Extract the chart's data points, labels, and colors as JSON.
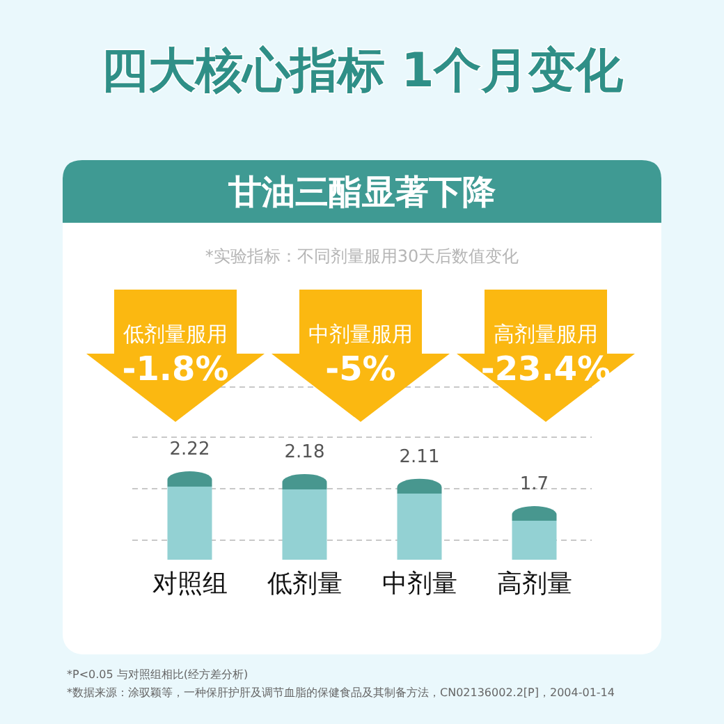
{
  "chart_data": {
    "type": "bar",
    "title": "四大核心指标  1个月变化",
    "subtitle": "甘油三酯显著下降",
    "categories": [
      "对照组",
      "低剂量",
      "中剂量",
      "高剂量"
    ],
    "values": [
      2.22,
      2.18,
      2.11,
      1.7
    ],
    "color": "#93d1d3",
    "data_labels": true,
    "ylim": [
      0.9,
      3.5
    ],
    "yticks": [
      {
        "value": 1.19,
        "label": null
      },
      {
        "value": 1.96,
        "label": null
      },
      {
        "value": 2.73,
        "label": null
      },
      {
        "value": 3.48,
        "label": null
      }
    ],
    "grid": "y",
    "line_style": "dashed",
    "tick_labels": "x",
    "annotations": [
      "*实验指标：不同剂量服用30天后数值变化",
      "低剂量服用",
      "-1.8%",
      "中剂量服用",
      "-5%",
      "高剂量服用",
      "-23.4%",
      "*P<0.05 与对照组相比(经方差分析)",
      "*数据来源：涂驭颖等，一种保肝护肝及调节血脂的保健食品及其制备方法，CN02136002.2[P]，2004-01-14"
    ]
  }
}
